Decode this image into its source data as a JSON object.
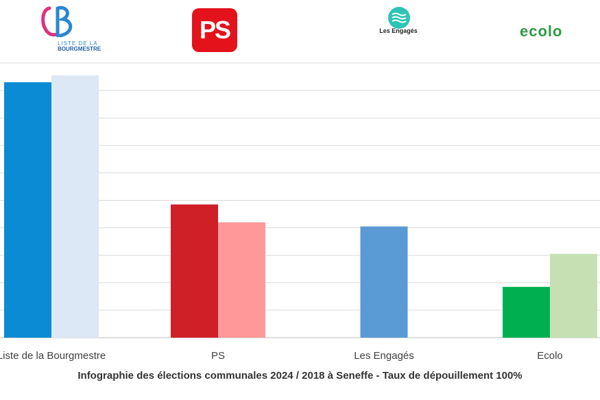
{
  "chart_data": {
    "type": "bar",
    "categories": [
      "Liste de la Bourgmestre",
      "PS",
      "Les Engagés",
      "Ecolo"
    ],
    "series": [
      {
        "name": "2024",
        "values": [
          9.3,
          4.85,
          4.05,
          1.85
        ],
        "colors": [
          "#0a8bd4",
          "#cf1f27",
          "#5b9bd5",
          "#00b050"
        ]
      },
      {
        "name": "2018",
        "values": [
          9.55,
          4.2,
          null,
          3.05
        ],
        "colors": [
          "#dce8f5",
          "#ff9999",
          "#5b9bd5",
          "#c6e0b4"
        ]
      }
    ],
    "ylim": [
      0,
      10
    ],
    "grid": true,
    "title": "Infographie des élections communales 2024 / 2018 à Seneffe - Taux de dépouillement 100%"
  },
  "logos": {
    "lb": {
      "top_text": "LISTE DE LA",
      "bottom_text": "BOURGMESTRE",
      "color": "#2a87d0",
      "accent": "#e0317c"
    },
    "ps": {
      "text": "PS",
      "color": "#e3121b"
    },
    "engages": {
      "text": "Les Engagés",
      "color": "#2ec4b6"
    },
    "ecolo": {
      "text": "ecolo",
      "color": "#2e9a43"
    }
  }
}
